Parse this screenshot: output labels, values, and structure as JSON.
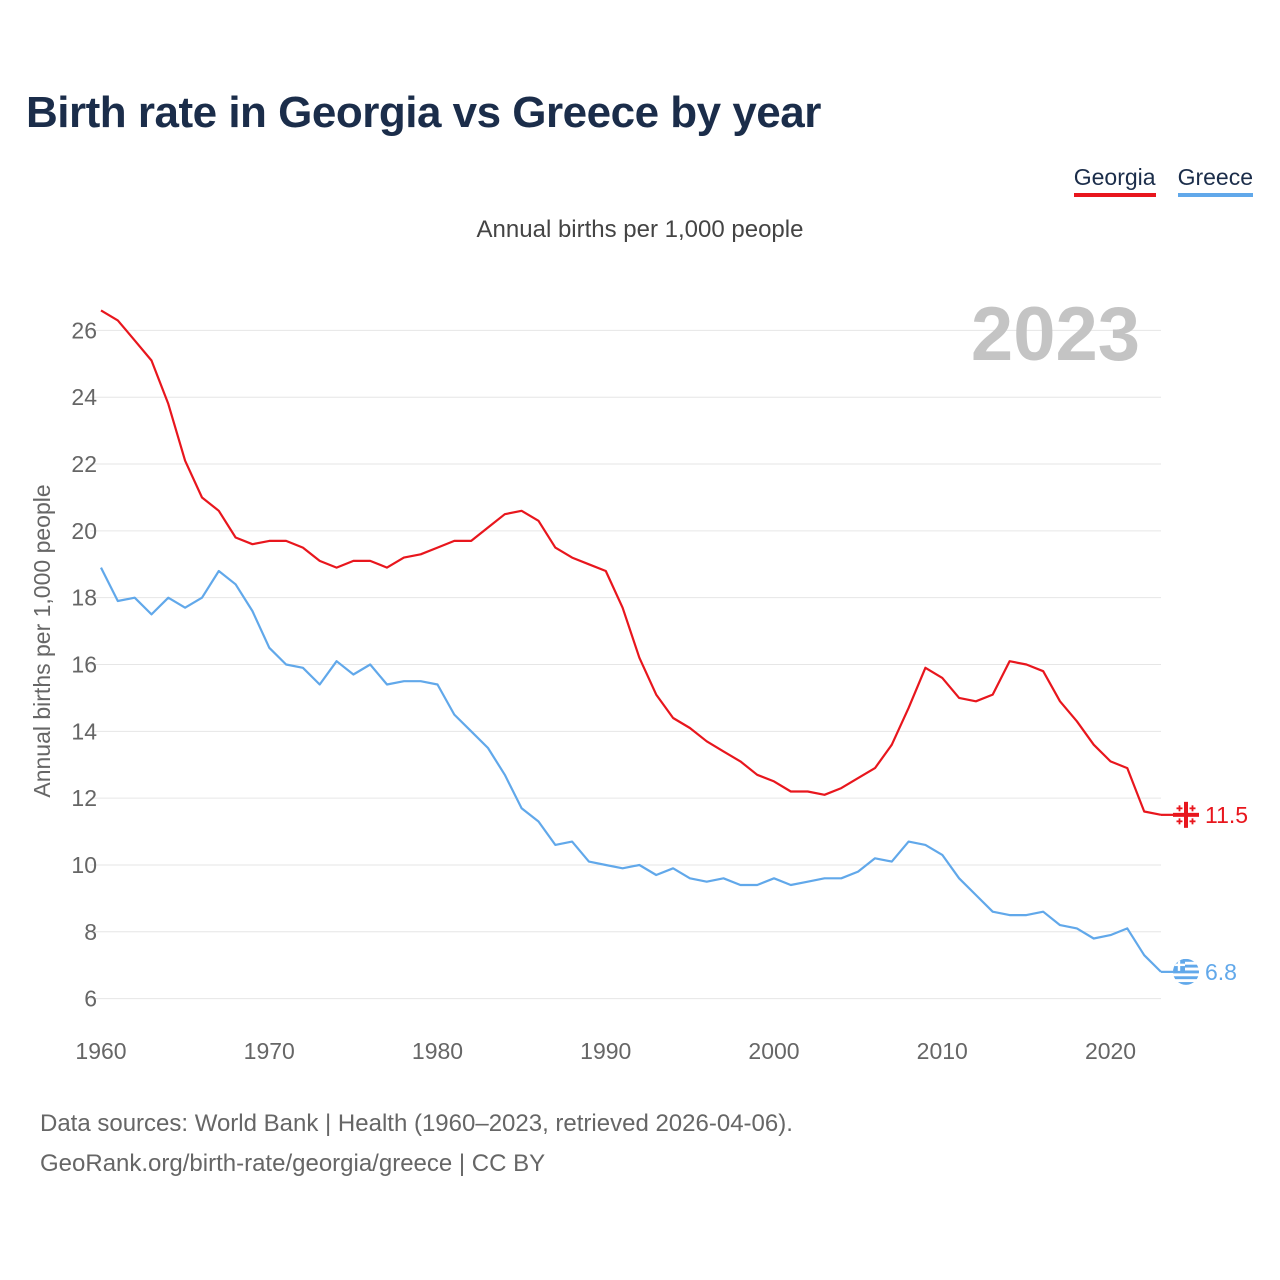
{
  "title": "Birth rate in Georgia vs Greece by year",
  "legend": [
    {
      "label": "Georgia",
      "color": "#e8161d"
    },
    {
      "label": "Greece",
      "color": "#61a8ea"
    }
  ],
  "footer": {
    "line1": "Data sources: World Bank | Health (1960–2023, retrieved 2026-04-06).",
    "line2": "GeoRank.org/birth-rate/georgia/greece | CC BY"
  },
  "chart_data": {
    "type": "line",
    "title": "Annual births per 1,000 people",
    "ylabel": "Annual births per 1,000 people",
    "xlabel": "",
    "year_label": "2023",
    "xlim": [
      1960,
      2023
    ],
    "ylim": [
      5,
      27
    ],
    "x_ticks": [
      1960,
      1970,
      1980,
      1990,
      2000,
      2010,
      2020
    ],
    "y_ticks": [
      6,
      8,
      10,
      12,
      14,
      16,
      18,
      20,
      22,
      24,
      26
    ],
    "x": [
      1960,
      1961,
      1962,
      1963,
      1964,
      1965,
      1966,
      1967,
      1968,
      1969,
      1970,
      1971,
      1972,
      1973,
      1974,
      1975,
      1976,
      1977,
      1978,
      1979,
      1980,
      1981,
      1982,
      1983,
      1984,
      1985,
      1986,
      1987,
      1988,
      1989,
      1990,
      1991,
      1992,
      1993,
      1994,
      1995,
      1996,
      1997,
      1998,
      1999,
      2000,
      2001,
      2002,
      2003,
      2004,
      2005,
      2006,
      2007,
      2008,
      2009,
      2010,
      2011,
      2012,
      2013,
      2014,
      2015,
      2016,
      2017,
      2018,
      2019,
      2020,
      2021,
      2022,
      2023
    ],
    "series": [
      {
        "name": "Georgia",
        "color": "#e8161d",
        "end_label": "11.5",
        "values": [
          26.6,
          26.3,
          25.7,
          25.1,
          23.8,
          22.1,
          21.0,
          20.6,
          19.8,
          19.6,
          19.7,
          19.7,
          19.5,
          19.1,
          18.9,
          19.1,
          19.1,
          18.9,
          19.2,
          19.3,
          19.5,
          19.7,
          19.7,
          20.1,
          20.5,
          20.6,
          20.3,
          19.5,
          19.2,
          19.0,
          18.8,
          17.7,
          16.2,
          15.1,
          14.4,
          14.1,
          13.7,
          13.4,
          13.1,
          12.7,
          12.5,
          12.2,
          12.2,
          12.1,
          12.3,
          12.6,
          12.9,
          13.6,
          14.7,
          15.9,
          15.6,
          15.0,
          14.9,
          15.1,
          16.1,
          16.0,
          15.8,
          14.9,
          14.3,
          13.6,
          13.1,
          12.9,
          11.6,
          11.5
        ]
      },
      {
        "name": "Greece",
        "color": "#61a8ea",
        "end_label": "6.8",
        "values": [
          18.9,
          17.9,
          18.0,
          17.5,
          18.0,
          17.7,
          18.0,
          18.8,
          18.4,
          17.6,
          16.5,
          16.0,
          15.9,
          15.4,
          16.1,
          15.7,
          16.0,
          15.4,
          15.5,
          15.5,
          15.4,
          14.5,
          14.0,
          13.5,
          12.7,
          11.7,
          11.3,
          10.6,
          10.7,
          10.1,
          10.0,
          9.9,
          10.0,
          9.7,
          9.9,
          9.6,
          9.5,
          9.6,
          9.4,
          9.4,
          9.6,
          9.4,
          9.5,
          9.6,
          9.6,
          9.8,
          10.2,
          10.1,
          10.7,
          10.6,
          10.3,
          9.6,
          9.1,
          8.6,
          8.5,
          8.5,
          8.6,
          8.2,
          8.1,
          7.8,
          7.9,
          8.1,
          7.3,
          6.8
        ]
      }
    ]
  }
}
